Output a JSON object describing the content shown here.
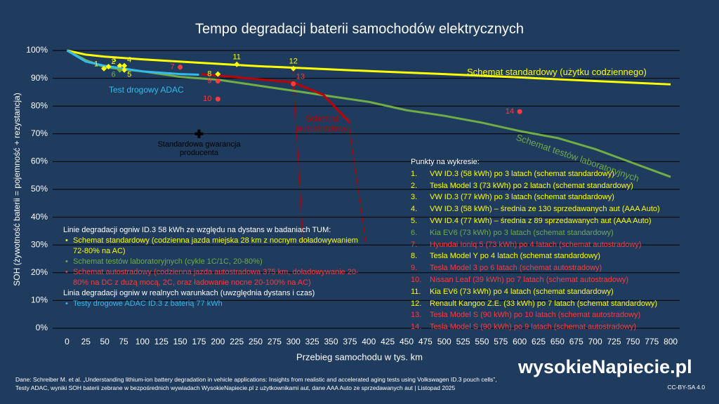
{
  "chart_data": {
    "type": "line",
    "title": "Tempo degradacji baterii samochodów elektrycznych",
    "x_label": "Przebieg samochodu w tys. km",
    "y_label": "SOH (żywotność baterii = pojemność + rezystancja)",
    "xlim": [
      -19,
      812
    ],
    "ylim": [
      0,
      100
    ],
    "xticks": [
      0,
      25,
      50,
      75,
      100,
      125,
      150,
      175,
      200,
      225,
      250,
      275,
      300,
      325,
      350,
      375,
      400,
      425,
      450,
      475,
      500,
      525,
      550,
      575,
      600,
      625,
      650,
      675,
      700,
      725,
      750,
      775,
      800
    ],
    "yticks": [
      {
        "value": 0,
        "label": "0%"
      },
      {
        "value": 10,
        "label": "10%"
      },
      {
        "value": 20,
        "label": "20%"
      },
      {
        "value": 30,
        "label": "30%"
      },
      {
        "value": 40,
        "label": "40%"
      },
      {
        "value": 50,
        "label": "50%"
      },
      {
        "value": 60,
        "label": "60%"
      },
      {
        "value": 70,
        "label": "70%"
      },
      {
        "value": 80,
        "label": "80%"
      },
      {
        "value": 90,
        "label": "90%"
      },
      {
        "value": 100,
        "label": "100%"
      }
    ],
    "grid": true,
    "series": [
      {
        "name": "Schemat standardowy (użytku codziennego)",
        "color": "#ffff00",
        "x": [
          0,
          25,
          50,
          100,
          150,
          200,
          250,
          300,
          400,
          500,
          600,
          700,
          800
        ],
        "values": [
          100,
          98.5,
          97.8,
          96.8,
          96,
          95.2,
          94.4,
          93.8,
          92.6,
          91.5,
          90.3,
          89,
          87.8
        ]
      },
      {
        "name": "Schemat testów laboratoryjnych",
        "color": "#70ad47",
        "x": [
          0,
          25,
          50,
          100,
          150,
          200,
          250,
          300,
          350,
          400,
          450,
          500,
          550,
          600,
          650,
          700,
          750,
          800
        ],
        "values": [
          100,
          96.5,
          94,
          92.5,
          90.5,
          89.5,
          87.5,
          85.5,
          83.5,
          81.5,
          78.5,
          76.5,
          74,
          71,
          68.5,
          64.5,
          59.5,
          54.5
        ]
      },
      {
        "name": "Schemat autostradowy",
        "color": "#c00000",
        "x": [
          178,
          300,
          340,
          375
        ],
        "values": [
          91.5,
          88.5,
          84,
          74
        ]
      },
      {
        "name": "Test drogowy ADAC",
        "color": "#33bbee",
        "x": [
          0,
          25,
          50,
          100,
          150,
          175
        ],
        "values": [
          100,
          96,
          94.5,
          92.5,
          91.5,
          91.3
        ]
      }
    ],
    "warranty": {
      "text": "Standardowa gwarancja producenta",
      "x": 175,
      "y": 70
    },
    "points_heading": "Punkty na wykresie:",
    "points": [
      {
        "label": "1",
        "item": "1.",
        "x": 49,
        "y": 93.5,
        "color": "#ffff00",
        "text": "VW ID.3 (58 kWh) po 3 latach (schemat standardowy)"
      },
      {
        "label": "2",
        "item": "2.",
        "x": 55,
        "y": 94.2,
        "color": "#ffff00",
        "text": "Tesla Model 3 (73 kWh) po 2 latach (schemat standardowy)"
      },
      {
        "label": "3",
        "item": "3.",
        "x": 70,
        "y": 94.5,
        "color": "#ffff00",
        "text": "VW ID.3 (77 kWh) po 3 latach (schemat standardowy)"
      },
      {
        "label": "4",
        "item": "4.",
        "x": 76,
        "y": 94.5,
        "color": "#ffff00",
        "text": "VW ID.3 (58 kWh) – średnia ze 130 sprzedawanych aut (AAA Auto)"
      },
      {
        "label": "5",
        "item": "5.",
        "x": 76,
        "y": 93,
        "color": "#ffff00",
        "text": "VW ID.4 (77 kWh) – średnia z 89 sprzedawanych aut (AAA Auto)"
      },
      {
        "label": "6",
        "item": "6.",
        "x": 70,
        "y": 93,
        "color": "#70ad47",
        "text": "Kia EV6 (73 kWh) po 3 latach (schemat standardowy)"
      },
      {
        "label": "7",
        "item": "7.",
        "x": 150,
        "y": 94,
        "color": "#ff3b3b",
        "text": "Hyundai Ioniq 5 (73 kWh) po 4 latach (schemat autostradowy)"
      },
      {
        "label": "8",
        "item": "8.",
        "x": 200,
        "y": 91.5,
        "color": "#ffff00",
        "text": "Tesla Model Y po 4 latach (schemat standardowy)"
      },
      {
        "label": "9",
        "item": "9.",
        "x": 200,
        "y": 89,
        "color": "#ff3b3b",
        "text": "Tesla Model 3 po 6 latach (schemat autostradowy)"
      },
      {
        "label": "10",
        "item": "10.",
        "x": 200,
        "y": 82.5,
        "color": "#ff3b3b",
        "text": "Nissan Leaf (39 kWh) po 7 latach (schemat autostradowy)"
      },
      {
        "label": "11",
        "item": "11.",
        "x": 225,
        "y": 95,
        "color": "#ffff00",
        "text": "Kia EV6 (73 kWh) po 4 latach (schemat standardowy)"
      },
      {
        "label": "12",
        "item": "12.",
        "x": 300,
        "y": 93.5,
        "color": "#ffff00",
        "text": "Renault Kangoo Z.E. (33 kWh) po 7 latach (schemat standardowy)"
      },
      {
        "label": "13",
        "item": "13.",
        "x": 300,
        "y": 88,
        "color": "#ff3b3b",
        "text": "Tesla Model S (90 kWh) po 10 latach (schemat autostradowy)"
      },
      {
        "label": "14",
        "item": "14.",
        "x": 600,
        "y": 78,
        "color": "#ff3b3b",
        "text": "Tesla Model S (90 kWh) po 9 latach (schemat autostradowy)"
      }
    ],
    "notes": [
      {
        "heading": "Linie degradacji ogniw ID.3 58 kWh ze względu na dystans w badaniach TUM:",
        "items": [
          {
            "text": "Schemat standardowy (codzienna jazda miejska 28 km z nocnym doładowywaniem 72-80% na AC)",
            "color": "#ffff00"
          },
          {
            "text": "Schemat testów laboratoryjnych (cykle 1C/1C, 20-80%)",
            "color": "#70ad47"
          },
          {
            "text": "Schemat autostradowy (codzienna jazda autostradowa 375 km, doładowywanie 20-80% na DC z dużą mocą, 2C, oraz ładowanie nocne 20-100% na AC)",
            "color": "#ff3b3b"
          }
        ]
      },
      {
        "heading": "Linia degradacji ogniw w realnych warunkach (uwzględnia dystans i czas)",
        "items": [
          {
            "text": "Testy drogowe ADAC ID.3 z baterią 77 kWh",
            "color": "#33bbee"
          }
        ]
      }
    ]
  },
  "footer": {
    "source": [
      "Dane: Schreiber M. et al. „Understanding lithium-ion battery degradation in vehicle applications: Insights from realistic and accelerated aging tests using Volkswagen ID.3 pouch cells”,",
      "Testy ADAC, wyniki SOH baterii zebrane w bezpośrednich wywiadach WysokieNapiecie.pl z użytkownikami aut, dane AAA Auto ze sprzedawanych aut  |  Listopad 2025"
    ],
    "logo": "wysokieNapiecie.pl",
    "license": "CC-BY-SA 4.0"
  }
}
